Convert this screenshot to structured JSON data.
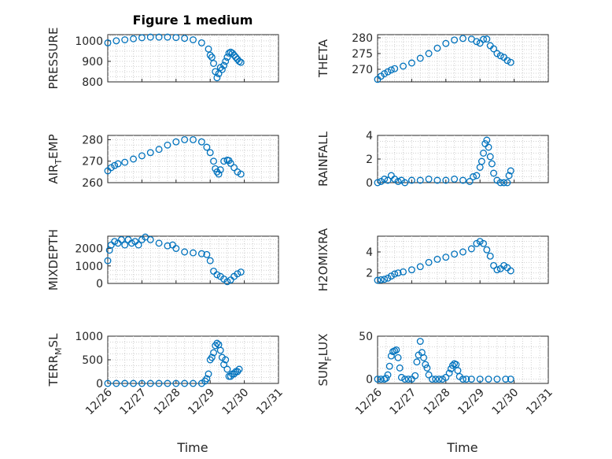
{
  "figure": {
    "title": "Figure 1 medium",
    "marker_color": "#0072BD"
  },
  "chart_data": [
    {
      "type": "scatter",
      "title": "Figure 1 medium",
      "ylabel": "PRESSURE",
      "ylabel_sub": "",
      "ylabel_post": "",
      "ylim": [
        800,
        1030
      ],
      "yticks": [
        800,
        900,
        1000
      ],
      "ytick_labels": [
        "800",
        "900",
        "1000"
      ],
      "x": [
        26.0,
        26.25,
        26.5,
        26.75,
        27.0,
        27.25,
        27.5,
        27.75,
        28.0,
        28.25,
        28.5,
        28.75,
        28.95,
        29.0,
        29.05,
        29.1,
        29.15,
        29.2,
        29.25,
        29.3,
        29.35,
        29.4,
        29.45,
        29.5,
        29.55,
        29.6,
        29.65,
        29.7,
        29.75,
        29.8,
        29.85,
        29.9
      ],
      "y": [
        990,
        1000,
        1005,
        1010,
        1015,
        1018,
        1018,
        1018,
        1016,
        1012,
        1005,
        990,
        960,
        930,
        920,
        890,
        850,
        820,
        840,
        870,
        860,
        880,
        900,
        920,
        940,
        945,
        940,
        930,
        920,
        910,
        900,
        895
      ]
    },
    {
      "type": "scatter",
      "ylabel": "THETA",
      "ylabel_sub": "",
      "ylabel_post": "",
      "ylim": [
        266,
        281
      ],
      "yticks": [
        270,
        275,
        280
      ],
      "ytick_labels": [
        "270",
        "275",
        "280"
      ],
      "x": [
        26.0,
        26.1,
        26.2,
        26.3,
        26.4,
        26.5,
        26.75,
        27.0,
        27.25,
        27.5,
        27.75,
        28.0,
        28.25,
        28.5,
        28.75,
        28.9,
        29.0,
        29.1,
        29.2,
        29.3,
        29.4,
        29.5,
        29.6,
        29.7,
        29.8,
        29.9
      ],
      "y": [
        266.8,
        267.8,
        268.6,
        269.2,
        269.8,
        270.2,
        271,
        272,
        273.5,
        275,
        276.7,
        278.2,
        279.3,
        279.8,
        279.6,
        278.8,
        278.3,
        279.5,
        279.6,
        277.5,
        276.5,
        275,
        274.3,
        273.8,
        272.8,
        272.2
      ]
    },
    {
      "type": "scatter",
      "ylabel": "AIR",
      "ylabel_sub": "T",
      "ylabel_post": "EMP",
      "ylim": [
        260,
        282
      ],
      "yticks": [
        260,
        270,
        280
      ],
      "ytick_labels": [
        "260",
        "270",
        "280"
      ],
      "x": [
        26.0,
        26.1,
        26.2,
        26.3,
        26.5,
        26.75,
        27.0,
        27.25,
        27.5,
        27.75,
        28.0,
        28.25,
        28.5,
        28.75,
        28.9,
        29.0,
        29.1,
        29.15,
        29.2,
        29.25,
        29.3,
        29.4,
        29.5,
        29.55,
        29.6,
        29.7,
        29.8,
        29.9
      ],
      "y": [
        265.5,
        267,
        268,
        268.8,
        269.5,
        271,
        272.5,
        274,
        275.5,
        277.5,
        279,
        280,
        280,
        279,
        276.5,
        274,
        270,
        266.5,
        265,
        264,
        266,
        270,
        270.5,
        270.3,
        269,
        267,
        265,
        264
      ]
    },
    {
      "type": "scatter",
      "ylabel": "RAINFALL",
      "ylabel_sub": "",
      "ylabel_post": "",
      "ylim": [
        0,
        4
      ],
      "yticks": [
        0,
        2,
        4
      ],
      "ytick_labels": [
        "0",
        "2",
        "4"
      ],
      "x": [
        26.0,
        26.1,
        26.2,
        26.3,
        26.4,
        26.5,
        26.6,
        26.7,
        26.8,
        27.0,
        27.25,
        27.5,
        27.75,
        28.0,
        28.25,
        28.5,
        28.7,
        28.8,
        28.9,
        29.0,
        29.05,
        29.1,
        29.15,
        29.2,
        29.25,
        29.3,
        29.35,
        29.4,
        29.5,
        29.6,
        29.7,
        29.8,
        29.85,
        29.9
      ],
      "y": [
        0,
        0.1,
        0.3,
        0.2,
        0.6,
        0.3,
        0.1,
        0.2,
        0,
        0.2,
        0.2,
        0.3,
        0.2,
        0.2,
        0.3,
        0.2,
        0.1,
        0.5,
        0.6,
        1.3,
        1.8,
        2.5,
        3.3,
        3.6,
        3.0,
        2.2,
        1.6,
        0.8,
        0.2,
        0,
        0,
        0,
        0.6,
        1.0
      ]
    },
    {
      "type": "scatter",
      "ylabel": "MIXDEPTH",
      "ylabel_sub": "",
      "ylabel_post": "",
      "ylim": [
        0,
        2700
      ],
      "yticks": [
        0,
        1000,
        2000
      ],
      "ytick_labels": [
        "0",
        "1000",
        "2000"
      ],
      "x": [
        26.0,
        26.05,
        26.1,
        26.2,
        26.3,
        26.4,
        26.5,
        26.6,
        26.7,
        26.8,
        26.9,
        27.0,
        27.1,
        27.25,
        27.5,
        27.75,
        27.9,
        28.0,
        28.25,
        28.5,
        28.75,
        28.9,
        29.0,
        29.1,
        29.2,
        29.3,
        29.4,
        29.5,
        29.6,
        29.7,
        29.8,
        29.9
      ],
      "y": [
        1300,
        1900,
        2200,
        2400,
        2300,
        2500,
        2200,
        2500,
        2300,
        2400,
        2200,
        2500,
        2650,
        2500,
        2300,
        2150,
        2200,
        2000,
        1800,
        1750,
        1700,
        1650,
        1300,
        700,
        500,
        400,
        250,
        100,
        200,
        400,
        550,
        650
      ]
    },
    {
      "type": "scatter",
      "ylabel": "H2OMIXRA",
      "ylabel_sub": "",
      "ylabel_post": "",
      "ylim": [
        1,
        5.5
      ],
      "yticks": [
        2,
        4
      ],
      "ytick_labels": [
        "2",
        "4"
      ],
      "x": [
        26.0,
        26.1,
        26.2,
        26.3,
        26.4,
        26.5,
        26.6,
        26.75,
        27.0,
        27.25,
        27.5,
        27.75,
        28.0,
        28.25,
        28.5,
        28.75,
        28.9,
        29.0,
        29.1,
        29.2,
        29.3,
        29.4,
        29.5,
        29.6,
        29.7,
        29.8,
        29.9
      ],
      "y": [
        1.3,
        1.35,
        1.4,
        1.5,
        1.7,
        1.9,
        2.0,
        2.1,
        2.3,
        2.6,
        3.0,
        3.3,
        3.5,
        3.8,
        4.0,
        4.3,
        4.8,
        5.0,
        4.8,
        4.2,
        3.6,
        2.7,
        2.3,
        2.4,
        2.7,
        2.5,
        2.2
      ]
    },
    {
      "type": "scatter",
      "ylabel": "TERR",
      "ylabel_sub": "M",
      "ylabel_post": "SL",
      "ylim": [
        0,
        1000
      ],
      "yticks": [
        0,
        500,
        1000
      ],
      "ytick_labels": [
        "0",
        "500",
        "1000"
      ],
      "x": [
        26.0,
        26.25,
        26.5,
        26.75,
        27.0,
        27.25,
        27.5,
        27.75,
        28.0,
        28.25,
        28.5,
        28.75,
        28.85,
        28.9,
        28.95,
        29.0,
        29.05,
        29.1,
        29.15,
        29.2,
        29.25,
        29.3,
        29.35,
        29.4,
        29.45,
        29.5,
        29.55,
        29.6,
        29.65,
        29.7,
        29.75,
        29.8,
        29.85
      ],
      "y": [
        0,
        0,
        0,
        0,
        0,
        0,
        0,
        0,
        0,
        0,
        0,
        0,
        50,
        100,
        200,
        500,
        550,
        650,
        800,
        850,
        820,
        700,
        550,
        400,
        500,
        300,
        150,
        150,
        200,
        200,
        250,
        250,
        300
      ]
    },
    {
      "type": "scatter",
      "ylabel": "SUN",
      "ylabel_sub": "F",
      "ylabel_post": "LUX",
      "ylim": [
        -5,
        50
      ],
      "yticks": [
        0,
        50
      ],
      "ytick_labels": [
        "0",
        "50"
      ],
      "x": [
        26.0,
        26.1,
        26.2,
        26.25,
        26.3,
        26.35,
        26.4,
        26.45,
        26.5,
        26.55,
        26.6,
        26.65,
        26.7,
        26.8,
        26.9,
        27.0,
        27.1,
        27.15,
        27.2,
        27.25,
        27.3,
        27.35,
        27.4,
        27.45,
        27.5,
        27.6,
        27.7,
        27.8,
        27.9,
        28.0,
        28.1,
        28.15,
        28.2,
        28.25,
        28.3,
        28.35,
        28.4,
        28.5,
        28.6,
        28.75,
        29.0,
        29.25,
        29.5,
        29.75,
        29.9
      ],
      "y": [
        0,
        0,
        0,
        1,
        5,
        15,
        27,
        32,
        33,
        34,
        25,
        13,
        2,
        0,
        0,
        0,
        4,
        20,
        28,
        44,
        31,
        25,
        17,
        13,
        5,
        0,
        0,
        0,
        0,
        2,
        7,
        12,
        16,
        18,
        17,
        10,
        3,
        0,
        0,
        0,
        0,
        0,
        0,
        0,
        0
      ]
    }
  ],
  "x_axis": {
    "range": [
      26,
      31
    ],
    "ticks": [
      26,
      27,
      28,
      29,
      30,
      31
    ],
    "tick_labels": [
      "12/26",
      "12/27",
      "12/28",
      "12/29",
      "12/30",
      "12/31"
    ],
    "label": "Time"
  }
}
